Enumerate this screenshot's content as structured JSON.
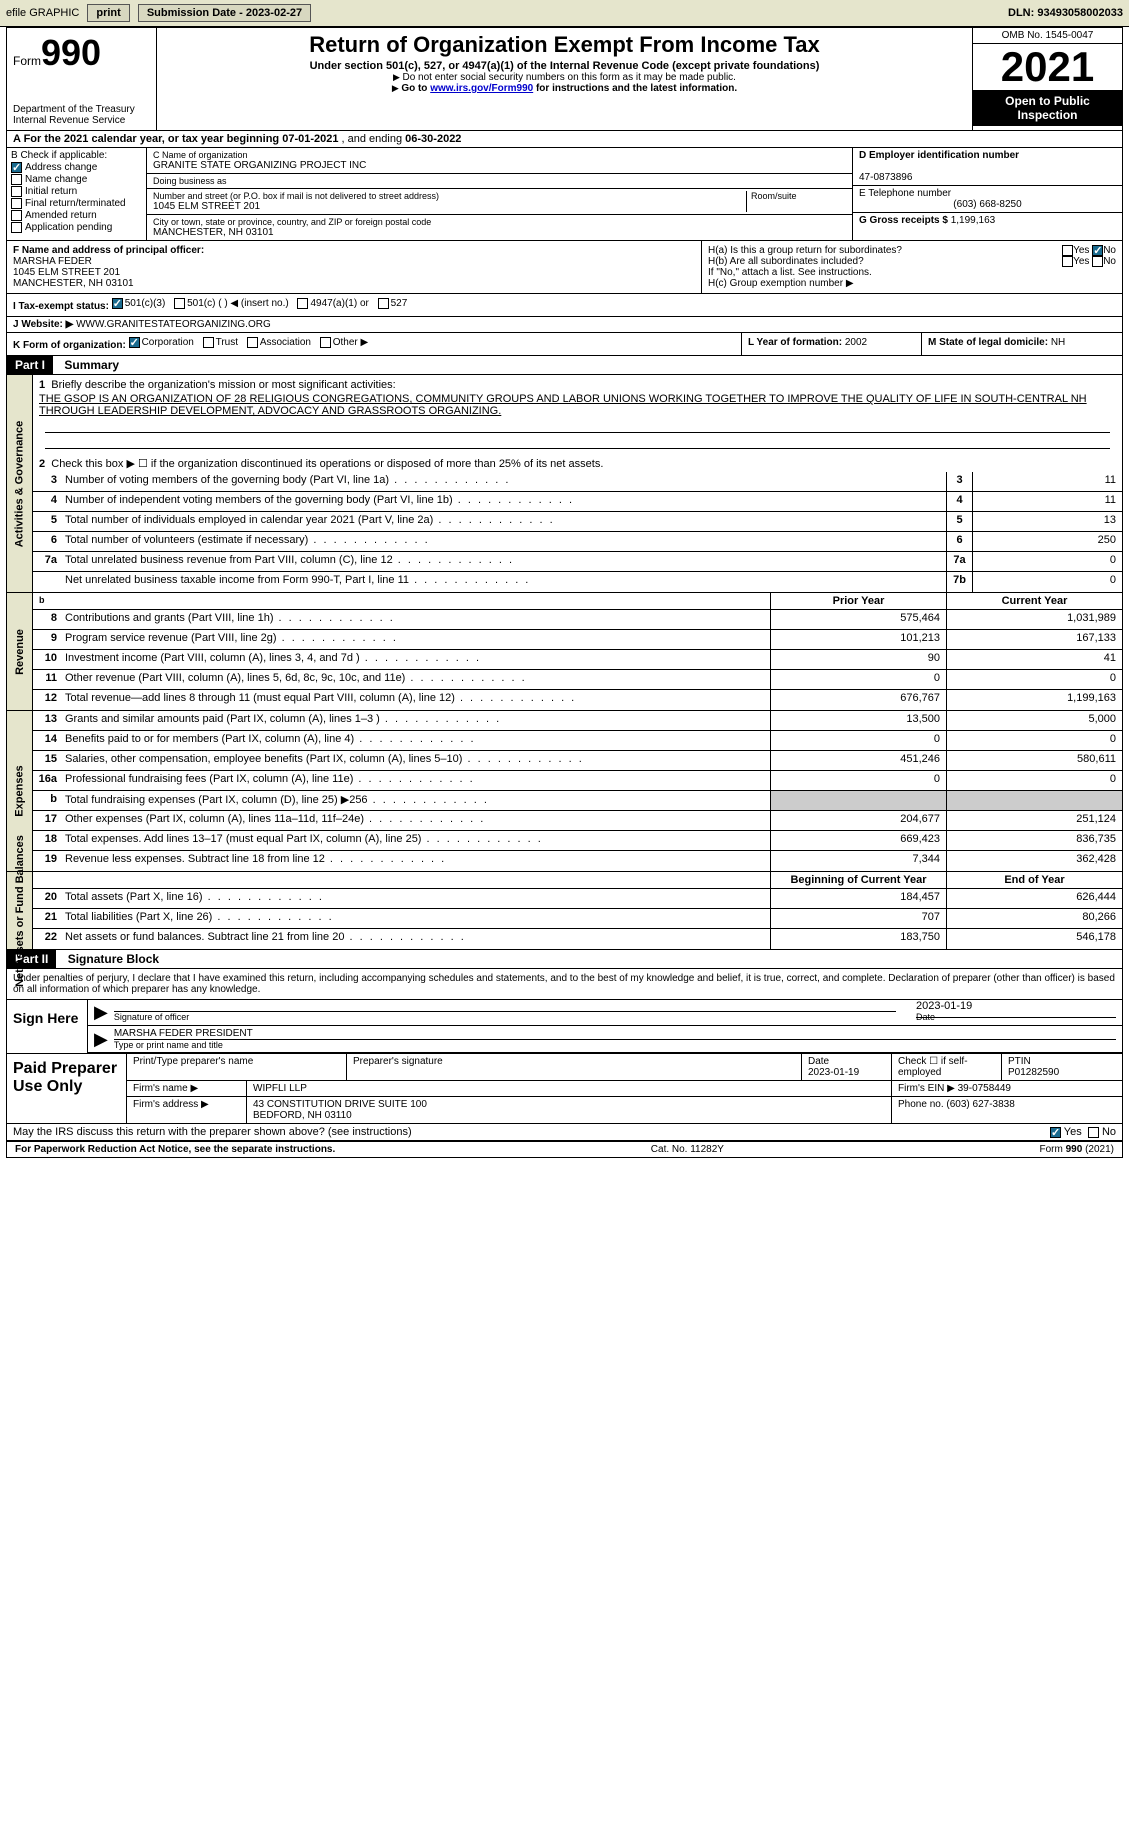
{
  "topbar": {
    "efile": "efile GRAPHIC",
    "print": "print",
    "submission": "Submission Date - 2023-02-27",
    "dln_label": "DLN:",
    "dln": "93493058002033"
  },
  "header": {
    "form_word": "Form",
    "form_num": "990",
    "dept": "Department of the Treasury\nInternal Revenue Service",
    "title": "Return of Organization Exempt From Income Tax",
    "subtitle": "Under section 501(c), 527, or 4947(a)(1) of the Internal Revenue Code (except private foundations)",
    "note1": "Do not enter social security numbers on this form as it may be made public.",
    "note2_pre": "Go to ",
    "note2_link": "www.irs.gov/Form990",
    "note2_post": " for instructions and the latest information.",
    "omb": "OMB No. 1545-0047",
    "year": "2021",
    "open": "Open to Public Inspection"
  },
  "row_a": {
    "label": "A For the 2021 calendar year, or tax year beginning ",
    "begin": "07-01-2021",
    "mid": " , and ending ",
    "end": "06-30-2022"
  },
  "col_b": {
    "label": "B Check if applicable:",
    "items": [
      {
        "checked": true,
        "text": "Address change"
      },
      {
        "checked": false,
        "text": "Name change"
      },
      {
        "checked": false,
        "text": "Initial return"
      },
      {
        "checked": false,
        "text": "Final return/terminated"
      },
      {
        "checked": false,
        "text": "Amended return"
      },
      {
        "checked": false,
        "text": "Application pending"
      }
    ]
  },
  "col_c": {
    "name_label": "C Name of organization",
    "name": "GRANITE STATE ORGANIZING PROJECT INC",
    "dba_label": "Doing business as",
    "dba": "",
    "addr_label": "Number and street (or P.O. box if mail is not delivered to street address)",
    "addr": "1045 ELM STREET 201",
    "room_label": "Room/suite",
    "city_label": "City or town, state or province, country, and ZIP or foreign postal code",
    "city": "MANCHESTER, NH  03101"
  },
  "col_d": {
    "ein_label": "D Employer identification number",
    "ein": "47-0873896",
    "tel_label": "E Telephone number",
    "tel": "(603) 668-8250",
    "gross_label": "G Gross receipts $",
    "gross": "1,199,163"
  },
  "section_f": {
    "label": "F Name and address of principal officer:",
    "name": "MARSHA FEDER",
    "addr1": "1045 ELM STREET 201",
    "addr2": "MANCHESTER, NH  03101"
  },
  "section_h": {
    "ha": "H(a)  Is this a group return for subordinates?",
    "hb": "H(b)  Are all subordinates included?",
    "hb_note": "If \"No,\" attach a list. See instructions.",
    "hc": "H(c)  Group exemption number ▶"
  },
  "row_i": {
    "label": "I  Tax-exempt status:",
    "opts": [
      "501(c)(3)",
      "501(c) (  ) ◀ (insert no.)",
      "4947(a)(1) or",
      "527"
    ]
  },
  "row_j": {
    "label": "J  Website: ▶",
    "value": "WWW.GRANITESTATEORGANIZING.ORG"
  },
  "row_k": {
    "label": "K Form of organization:",
    "opts": [
      "Corporation",
      "Trust",
      "Association",
      "Other ▶"
    ],
    "l_label": "L Year of formation:",
    "l_val": "2002",
    "m_label": "M State of legal domicile:",
    "m_val": "NH"
  },
  "part1": {
    "hdr": "Part I",
    "title": "Summary",
    "q1": "Briefly describe the organization's mission or most significant activities:",
    "mission": "THE GSOP IS AN ORGANIZATION OF 28 RELIGIOUS CONGREGATIONS, COMMUNITY GROUPS AND LABOR UNIONS WORKING TOGETHER TO IMPROVE THE QUALITY OF LIFE IN SOUTH-CENTRAL NH THROUGH LEADERSHIP DEVELOPMENT, ADVOCACY AND GRASSROOTS ORGANIZING.",
    "q2": "Check this box ▶ ☐ if the organization discontinued its operations or disposed of more than 25% of its net assets."
  },
  "gov_rows": [
    {
      "n": "3",
      "d": "Number of voting members of the governing body (Part VI, line 1a)",
      "box": "3",
      "v": "11"
    },
    {
      "n": "4",
      "d": "Number of independent voting members of the governing body (Part VI, line 1b)",
      "box": "4",
      "v": "11"
    },
    {
      "n": "5",
      "d": "Total number of individuals employed in calendar year 2021 (Part V, line 2a)",
      "box": "5",
      "v": "13"
    },
    {
      "n": "6",
      "d": "Total number of volunteers (estimate if necessary)",
      "box": "6",
      "v": "250"
    },
    {
      "n": "7a",
      "d": "Total unrelated business revenue from Part VIII, column (C), line 12",
      "box": "7a",
      "v": "0"
    },
    {
      "n": "",
      "d": "Net unrelated business taxable income from Form 990-T, Part I, line 11",
      "box": "7b",
      "v": "0"
    }
  ],
  "col_headers": {
    "prior": "Prior Year",
    "current": "Current Year",
    "boy": "Beginning of Current Year",
    "eoy": "End of Year"
  },
  "revenue_rows": [
    {
      "n": "8",
      "d": "Contributions and grants (Part VIII, line 1h)",
      "p": "575,464",
      "c": "1,031,989"
    },
    {
      "n": "9",
      "d": "Program service revenue (Part VIII, line 2g)",
      "p": "101,213",
      "c": "167,133"
    },
    {
      "n": "10",
      "d": "Investment income (Part VIII, column (A), lines 3, 4, and 7d )",
      "p": "90",
      "c": "41"
    },
    {
      "n": "11",
      "d": "Other revenue (Part VIII, column (A), lines 5, 6d, 8c, 9c, 10c, and 11e)",
      "p": "0",
      "c": "0"
    },
    {
      "n": "12",
      "d": "Total revenue—add lines 8 through 11 (must equal Part VIII, column (A), line 12)",
      "p": "676,767",
      "c": "1,199,163"
    }
  ],
  "expense_rows": [
    {
      "n": "13",
      "d": "Grants and similar amounts paid (Part IX, column (A), lines 1–3 )",
      "p": "13,500",
      "c": "5,000"
    },
    {
      "n": "14",
      "d": "Benefits paid to or for members (Part IX, column (A), line 4)",
      "p": "0",
      "c": "0"
    },
    {
      "n": "15",
      "d": "Salaries, other compensation, employee benefits (Part IX, column (A), lines 5–10)",
      "p": "451,246",
      "c": "580,611"
    },
    {
      "n": "16a",
      "d": "Professional fundraising fees (Part IX, column (A), line 11e)",
      "p": "0",
      "c": "0"
    },
    {
      "n": "b",
      "d": "Total fundraising expenses (Part IX, column (D), line 25) ▶256",
      "p": "",
      "c": "",
      "shade": true
    },
    {
      "n": "17",
      "d": "Other expenses (Part IX, column (A), lines 11a–11d, 11f–24e)",
      "p": "204,677",
      "c": "251,124"
    },
    {
      "n": "18",
      "d": "Total expenses. Add lines 13–17 (must equal Part IX, column (A), line 25)",
      "p": "669,423",
      "c": "836,735"
    },
    {
      "n": "19",
      "d": "Revenue less expenses. Subtract line 18 from line 12",
      "p": "7,344",
      "c": "362,428"
    }
  ],
  "net_rows": [
    {
      "n": "20",
      "d": "Total assets (Part X, line 16)",
      "p": "184,457",
      "c": "626,444"
    },
    {
      "n": "21",
      "d": "Total liabilities (Part X, line 26)",
      "p": "707",
      "c": "80,266"
    },
    {
      "n": "22",
      "d": "Net assets or fund balances. Subtract line 21 from line 20",
      "p": "183,750",
      "c": "546,178"
    }
  ],
  "part2": {
    "hdr": "Part II",
    "title": "Signature Block",
    "decl": "Under penalties of perjury, I declare that I have examined this return, including accompanying schedules and statements, and to the best of my knowledge and belief, it is true, correct, and complete. Declaration of preparer (other than officer) is based on all information of which preparer has any knowledge."
  },
  "sign": {
    "label": "Sign Here",
    "sig_label": "Signature of officer",
    "date": "2023-01-19",
    "date_label": "Date",
    "name": "MARSHA FEDER  PRESIDENT",
    "name_label": "Type or print name and title"
  },
  "paid": {
    "label": "Paid Preparer Use Only",
    "r1": {
      "c1": "Print/Type preparer's name",
      "c2": "Preparer's signature",
      "c3": "Date\n2023-01-19",
      "c4": "Check ☐ if self-employed",
      "c5": "PTIN\nP01282590"
    },
    "r2": {
      "c1": "Firm's name    ▶",
      "c2": "WIPFLI LLP",
      "c3": "Firm's EIN ▶",
      "c4": "39-0758449"
    },
    "r3": {
      "c1": "Firm's address ▶",
      "c2": "43 CONSTITUTION DRIVE SUITE 100\nBEDFORD, NH  03110",
      "c3": "Phone no.",
      "c4": "(603) 627-3838"
    }
  },
  "discuss": {
    "q": "May the IRS discuss this return with the preparer shown above? (see instructions)",
    "yes": "Yes",
    "no": "No"
  },
  "footer": {
    "left": "For Paperwork Reduction Act Notice, see the separate instructions.",
    "mid": "Cat. No. 11282Y",
    "right": "Form 990 (2021)"
  },
  "tabs": {
    "gov": "Activities & Governance",
    "rev": "Revenue",
    "exp": "Expenses",
    "net": "Net Assets or Fund Balances"
  }
}
